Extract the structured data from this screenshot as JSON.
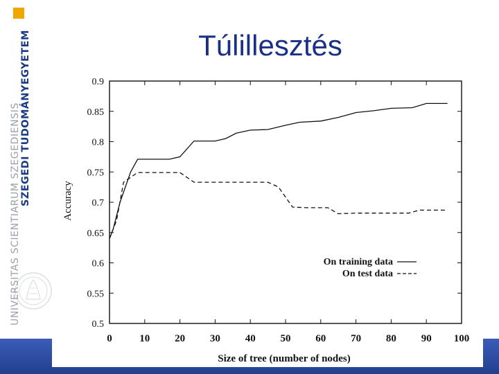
{
  "slide": {
    "title": "Túlillesztés"
  },
  "brand": {
    "name_bold": "SZEGEDI TUDOMÁNYEGYETEM",
    "name_light": "UNIVERSITAS SCIENTIARUM SZEGEDIENSIS",
    "logo_color": "#f0a800",
    "band_color": "#2b4aa0"
  },
  "chart_data": {
    "type": "line",
    "title": "",
    "xlabel": "Size of tree (number of nodes)",
    "ylabel": "Accuracy",
    "xlim": [
      0,
      100
    ],
    "ylim": [
      0.5,
      0.9
    ],
    "x_ticks": [
      0,
      10,
      20,
      30,
      40,
      50,
      60,
      70,
      80,
      90,
      100
    ],
    "y_ticks": [
      0.5,
      0.55,
      0.6,
      0.65,
      0.7,
      0.75,
      0.8,
      0.85,
      0.9
    ],
    "grid": false,
    "legend_position": "bottom-right",
    "series": [
      {
        "name": "On training data",
        "style": "solid",
        "points": [
          [
            0,
            0.64
          ],
          [
            1,
            0.655
          ],
          [
            3,
            0.7
          ],
          [
            6,
            0.75
          ],
          [
            8,
            0.771
          ],
          [
            12,
            0.771
          ],
          [
            17,
            0.771
          ],
          [
            20,
            0.775
          ],
          [
            24,
            0.801
          ],
          [
            30,
            0.801
          ],
          [
            33,
            0.805
          ],
          [
            36,
            0.814
          ],
          [
            40,
            0.819
          ],
          [
            45,
            0.82
          ],
          [
            50,
            0.827
          ],
          [
            54,
            0.832
          ],
          [
            60,
            0.834
          ],
          [
            65,
            0.84
          ],
          [
            70,
            0.848
          ],
          [
            75,
            0.851
          ],
          [
            80,
            0.855
          ],
          [
            86,
            0.856
          ],
          [
            90,
            0.863
          ],
          [
            96,
            0.863
          ]
        ]
      },
      {
        "name": "On test data",
        "style": "dashed",
        "points": [
          [
            0,
            0.64
          ],
          [
            2,
            0.67
          ],
          [
            4,
            0.733
          ],
          [
            8,
            0.749
          ],
          [
            14,
            0.749
          ],
          [
            20,
            0.749
          ],
          [
            24,
            0.733
          ],
          [
            25,
            0.733
          ],
          [
            35,
            0.733
          ],
          [
            45,
            0.733
          ],
          [
            48,
            0.725
          ],
          [
            52,
            0.692
          ],
          [
            56,
            0.691
          ],
          [
            62,
            0.691
          ],
          [
            65,
            0.681
          ],
          [
            70,
            0.682
          ],
          [
            80,
            0.682
          ],
          [
            85,
            0.682
          ],
          [
            88,
            0.687
          ],
          [
            92,
            0.687
          ],
          [
            96,
            0.687
          ]
        ]
      }
    ]
  }
}
